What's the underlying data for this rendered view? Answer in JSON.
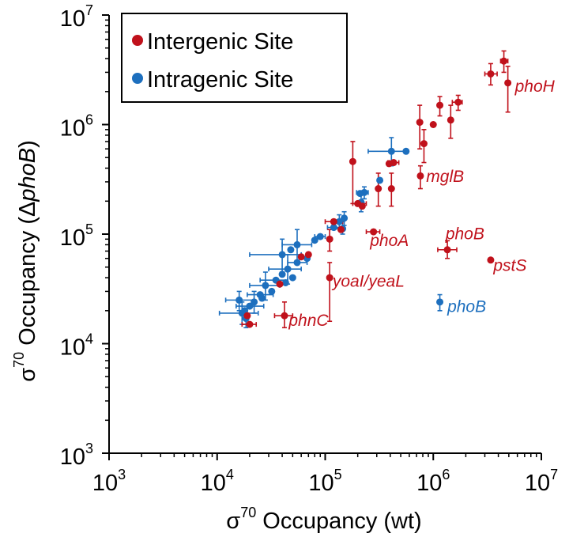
{
  "chart_data": {
    "type": "scatter",
    "title": "",
    "xlabel_sigma": "σ",
    "xlabel_sup": "70",
    "xlabel_rest": " Occupancy (wt)",
    "ylabel_sigma": "σ",
    "ylabel_sup": "70",
    "ylabel_rest_plain": " Occupancy (",
    "ylabel_delta": "Δ",
    "ylabel_italic": "phoB",
    "ylabel_close": ")",
    "x_scale": "log",
    "y_scale": "log",
    "xlim": [
      1000,
      10000000
    ],
    "ylim": [
      1000,
      10000000
    ],
    "tick_base": "10",
    "xticks": [
      {
        "value": 1000,
        "exp": "3"
      },
      {
        "value": 10000,
        "exp": "4"
      },
      {
        "value": 100000,
        "exp": "5"
      },
      {
        "value": 1000000,
        "exp": "6"
      },
      {
        "value": 10000000,
        "exp": "7"
      }
    ],
    "yticks": [
      {
        "value": 1000,
        "exp": "3"
      },
      {
        "value": 10000,
        "exp": "4"
      },
      {
        "value": 100000,
        "exp": "5"
      },
      {
        "value": 1000000,
        "exp": "6"
      },
      {
        "value": 10000000,
        "exp": "7"
      }
    ],
    "grid": false,
    "legend_position": "top-left",
    "series": [
      {
        "name": "Intergenic Site",
        "color": "#c0111b",
        "points": [
          {
            "x": 4500000,
            "y": 3800000,
            "xe": [
              4200000,
              4900000
            ],
            "ye": [
              3000000,
              4700000
            ]
          },
          {
            "x": 3400000,
            "y": 2900000,
            "xe": [
              3000000,
              3900000
            ],
            "ye": [
              2300000,
              3600000
            ]
          },
          {
            "x": 4900000,
            "y": 2400000,
            "ye": [
              1300000,
              3400000
            ]
          },
          {
            "x": 1700000,
            "y": 1600000,
            "xe": [
              1500000,
              1850000
            ],
            "ye": [
              1350000,
              1850000
            ]
          },
          {
            "x": 1150000,
            "y": 1500000,
            "ye": [
              1200000,
              1800000
            ]
          },
          {
            "x": 1450000,
            "y": 1100000,
            "ye": [
              750000,
              1500000
            ]
          },
          {
            "x": 750000,
            "y": 1050000,
            "ye": [
              600000,
              1500000
            ]
          },
          {
            "x": 1000000,
            "y": 1000000
          },
          {
            "x": 820000,
            "y": 670000,
            "ye": [
              450000,
              900000
            ]
          },
          {
            "x": 180000,
            "y": 460000,
            "ye": [
              190000,
              700000
            ]
          },
          {
            "x": 430000,
            "y": 450000,
            "xe": [
              380000,
              480000
            ]
          },
          {
            "x": 390000,
            "y": 440000
          },
          {
            "x": 760000,
            "y": 340000,
            "ye": [
              260000,
              420000
            ]
          },
          {
            "x": 310000,
            "y": 260000,
            "ye": [
              180000,
              360000
            ]
          },
          {
            "x": 410000,
            "y": 260000,
            "ye": [
              180000,
              360000
            ]
          },
          {
            "x": 200000,
            "y": 190000,
            "xe": [
              180000,
              240000
            ]
          },
          {
            "x": 220000,
            "y": 180000
          },
          {
            "x": 120000,
            "y": 130000,
            "xe": [
              100000,
              145000
            ]
          },
          {
            "x": 140000,
            "y": 110000
          },
          {
            "x": 110000,
            "y": 90000,
            "ye": [
              70000,
              110000
            ]
          },
          {
            "x": 280000,
            "y": 105000,
            "xe": [
              240000,
              320000
            ]
          },
          {
            "x": 1350000,
            "y": 72000,
            "xe": [
              1100000,
              1650000
            ],
            "ye": [
              60000,
              87000
            ]
          },
          {
            "x": 3400000,
            "y": 58000
          },
          {
            "x": 70000,
            "y": 65000
          },
          {
            "x": 60000,
            "y": 62000
          },
          {
            "x": 110000,
            "y": 40000,
            "ye": [
              16000,
              55000
            ]
          },
          {
            "x": 38000,
            "y": 35000
          },
          {
            "x": 42000,
            "y": 18000,
            "xe": [
              34000,
              50000
            ],
            "ye": [
              14000,
              24000
            ]
          },
          {
            "x": 19000,
            "y": 18000
          },
          {
            "x": 20000,
            "y": 15000,
            "xe": [
              17000,
              23000
            ]
          }
        ]
      },
      {
        "name": "Intragenic Site",
        "color": "#1d6fbe",
        "points": [
          {
            "x": 560000,
            "y": 570000
          },
          {
            "x": 410000,
            "y": 570000,
            "xe": [
              250000,
              560000
            ],
            "ye": [
              420000,
              760000
            ]
          },
          {
            "x": 320000,
            "y": 310000
          },
          {
            "x": 230000,
            "y": 240000,
            "xe": [
              195000,
              250000
            ],
            "ye": [
              210000,
              270000
            ]
          },
          {
            "x": 210000,
            "y": 235000
          },
          {
            "x": 215000,
            "y": 195000,
            "ye": [
              160000,
              230000
            ]
          },
          {
            "x": 150000,
            "y": 140000,
            "ye": [
              120000,
              160000
            ]
          },
          {
            "x": 135000,
            "y": 130000,
            "ye": [
              112000,
              150000
            ]
          },
          {
            "x": 120000,
            "y": 115000,
            "xe": [
              105000,
              135000
            ]
          },
          {
            "x": 145000,
            "y": 112000,
            "ye": [
              100000,
              130000
            ]
          },
          {
            "x": 90000,
            "y": 95000,
            "xe": [
              80000,
              100000
            ]
          },
          {
            "x": 80000,
            "y": 88000
          },
          {
            "x": 55000,
            "y": 80000,
            "xe": [
              40000,
              75000
            ],
            "ye": [
              55000,
              110000
            ]
          },
          {
            "x": 48000,
            "y": 72000
          },
          {
            "x": 40000,
            "y": 65000,
            "xe": [
              20000,
              60000
            ],
            "ye": [
              45000,
              90000
            ]
          },
          {
            "x": 68000,
            "y": 60000
          },
          {
            "x": 55000,
            "y": 55000,
            "xe": [
              45000,
              68000
            ]
          },
          {
            "x": 45000,
            "y": 48000,
            "xe": [
              30000,
              60000
            ],
            "ye": [
              35000,
              65000
            ]
          },
          {
            "x": 40000,
            "y": 43000
          },
          {
            "x": 50000,
            "y": 40000
          },
          {
            "x": 35000,
            "y": 38000,
            "xe": [
              25000,
              45000
            ]
          },
          {
            "x": 43000,
            "y": 36000
          },
          {
            "x": 28000,
            "y": 34000,
            "xe": [
              20000,
              38000
            ],
            "ye": [
              25000,
              45000
            ]
          },
          {
            "x": 32000,
            "y": 30000
          },
          {
            "x": 25000,
            "y": 28000,
            "xe": [
              19000,
              33000
            ]
          },
          {
            "x": 26000,
            "y": 26000
          },
          {
            "x": 22000,
            "y": 24000,
            "ye": [
              19000,
              30000
            ]
          },
          {
            "x": 20000,
            "y": 22000,
            "xe": [
              15000,
              27000
            ]
          },
          {
            "x": 18000,
            "y": 20000
          },
          {
            "x": 16000,
            "y": 25000,
            "xe": [
              12000,
              22000
            ],
            "ye": [
              20000,
              30000
            ]
          },
          {
            "x": 17000,
            "y": 19000,
            "xe": [
              10500,
              24000
            ],
            "ye": [
              15000,
              24000
            ]
          },
          {
            "x": 18500,
            "y": 17000,
            "ye": [
              14000,
              21000
            ]
          },
          {
            "x": 1150000,
            "y": 24000,
            "ye": [
              20000,
              28000
            ]
          }
        ]
      }
    ],
    "annotations": [
      {
        "text": "phoH",
        "x": 5700000,
        "y": 2000000,
        "color": "#c0111b"
      },
      {
        "text": "mglB",
        "x": 860000,
        "y": 300000,
        "color": "#c0111b"
      },
      {
        "text": "phoB",
        "x": 1300000,
        "y": 90000,
        "color": "#c0111b"
      },
      {
        "text": "phoA",
        "x": 260000,
        "y": 78000,
        "color": "#c0111b"
      },
      {
        "text": "pstS",
        "x": 3600000,
        "y": 46000,
        "color": "#c0111b"
      },
      {
        "text": "yoaI/yeaL",
        "x": 117000,
        "y": 33000,
        "color": "#c0111b"
      },
      {
        "text": "phoB",
        "x": 1350000,
        "y": 19500,
        "color": "#1d6fbe"
      },
      {
        "text": "phnC",
        "x": 46000,
        "y": 14500,
        "color": "#c0111b"
      }
    ]
  }
}
